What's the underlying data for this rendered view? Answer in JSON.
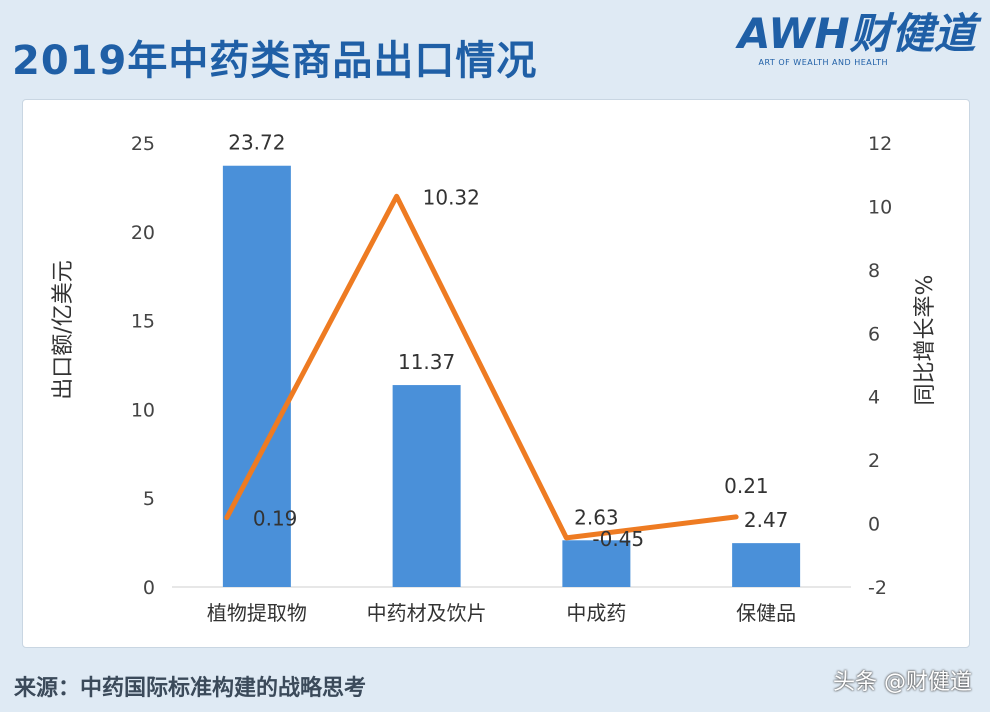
{
  "header": {
    "title": "2019年中药类商品出口情况",
    "logo_text": "AWH财健道",
    "logo_sub": "ART OF WEALTH AND HEALTH"
  },
  "footer": {
    "source": "来源：中药国际标准构建的战略思考",
    "watermark": "头条 @财健道"
  },
  "colors": {
    "bar": "#4a90d9",
    "line": "#ee7b22",
    "brand": "#1f5fa6"
  },
  "chart_data": {
    "type": "bar",
    "categories": [
      "植物提取物",
      "中药材及饮片",
      "中成药",
      "保健品"
    ],
    "series": [
      {
        "type": "bar",
        "axis": "left",
        "values": [
          23.72,
          11.37,
          2.63,
          2.47
        ],
        "labels": [
          "23.72",
          "11.37",
          "2.63",
          "2.47"
        ]
      },
      {
        "type": "line",
        "axis": "right",
        "values": [
          0.19,
          10.32,
          -0.45,
          0.21
        ],
        "labels": [
          "0.19",
          "10.32",
          "-0.45",
          "0.21"
        ]
      }
    ],
    "ylabel": "出口额/亿美元",
    "y2label": "同比增长率%",
    "ylim": [
      0,
      25
    ],
    "y2lim": [
      -2,
      12
    ],
    "yticks": [
      "0",
      "5",
      "10",
      "15",
      "20",
      "25"
    ],
    "y2ticks": [
      "-2",
      "0",
      "2",
      "4",
      "6",
      "8",
      "10",
      "12"
    ],
    "grid": false,
    "legend": "none"
  }
}
